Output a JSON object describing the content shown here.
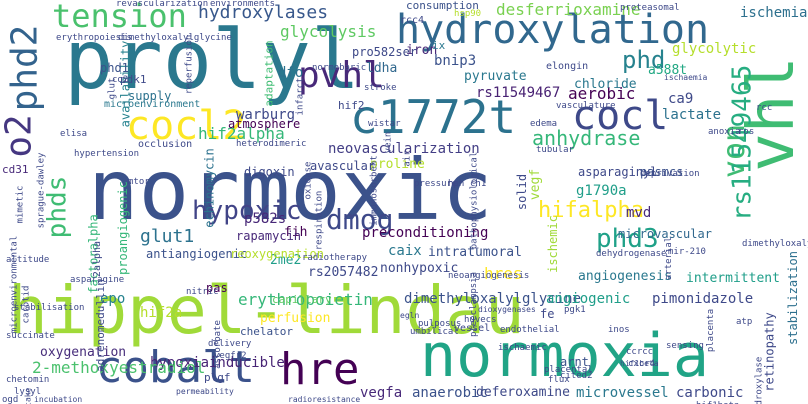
{
  "words": [
    {
      "text": "normoxic",
      "color": "#3b528b"
    },
    {
      "text": "hippel-lindau",
      "color": "#a0da39"
    },
    {
      "text": "prolyl",
      "color": "#2a788e"
    },
    {
      "text": "normoxia",
      "color": "#20a486"
    },
    {
      "text": "vhl",
      "color": "#3fbc73"
    },
    {
      "text": "hydroxylation",
      "color": "#31688e"
    },
    {
      "text": "c1772t",
      "color": "#2c728e"
    },
    {
      "text": "cobalt",
      "color": "#3b528b"
    },
    {
      "text": "hre",
      "color": "#440154"
    },
    {
      "text": "cocl2",
      "color": "#fde725"
    },
    {
      "text": "cocl",
      "color": "#3e4989"
    },
    {
      "text": "pvhl",
      "color": "#482979"
    },
    {
      "text": "phd2",
      "color": "#33638d"
    },
    {
      "text": "tension",
      "color": "#4ac16d"
    },
    {
      "text": "o2",
      "color": "#453781"
    },
    {
      "text": "von",
      "color": "#3fbc73"
    },
    {
      "text": "rs11549465",
      "color": "#26ad81"
    },
    {
      "text": "dmog",
      "color": "#3e4989"
    },
    {
      "text": "hifalpha",
      "color": "#fde725"
    },
    {
      "text": "hypoxic",
      "color": "#414487"
    },
    {
      "text": "phd3",
      "color": "#1fa188"
    },
    {
      "text": "phds",
      "color": "#3fbc73"
    },
    {
      "text": "phd",
      "color": "#26828e"
    },
    {
      "text": "hydroxylases",
      "color": "#38588c"
    },
    {
      "text": "glycolysis",
      "color": "#5ec962"
    },
    {
      "text": "desferrioxamine",
      "color": "#7ad151"
    },
    {
      "text": "ischemia",
      "color": "#2d708e"
    },
    {
      "text": "glycolytic",
      "color": "#b5de2b"
    },
    {
      "text": "hif2alpha",
      "color": "#35b779"
    },
    {
      "text": "anhydrase",
      "color": "#35b779"
    },
    {
      "text": "aerobic",
      "color": "#440154"
    },
    {
      "text": "rs11549467",
      "color": "#482173"
    },
    {
      "text": "bnip3",
      "color": "#3b528b"
    },
    {
      "text": "lactate",
      "color": "#2c728e"
    },
    {
      "text": "ca9",
      "color": "#3e4989"
    },
    {
      "text": "chloride",
      "color": "#2a788e"
    },
    {
      "text": "a588t",
      "color": "#22a884"
    },
    {
      "text": "neovascularization",
      "color": "#433e85"
    },
    {
      "text": "erythropoietin",
      "color": "#35b779"
    },
    {
      "text": "dimethyloxalylglycine",
      "color": "#3b528b"
    },
    {
      "text": "hypoxiainducible",
      "color": "#482475"
    },
    {
      "text": "2-methoxyestradiol",
      "color": "#4ac16d"
    },
    {
      "text": "oxygenation",
      "color": "#472d7b"
    },
    {
      "text": "angiogenic",
      "color": "#1f9e89"
    },
    {
      "text": "anaerobic",
      "color": "#3b528b"
    },
    {
      "text": "microvessel",
      "color": "#2a788e"
    },
    {
      "text": "deferoxamine",
      "color": "#3e4989"
    },
    {
      "text": "vegfa",
      "color": "#482979"
    },
    {
      "text": "carbonic",
      "color": "#3e4989"
    },
    {
      "text": "pimonidazole",
      "color": "#3e4989"
    },
    {
      "text": "preconditioning",
      "color": "#440154"
    },
    {
      "text": "glut1",
      "color": "#2c728e"
    },
    {
      "text": "p582s",
      "color": "#482878"
    },
    {
      "text": "g1790a",
      "color": "#1f9e89"
    },
    {
      "text": "hres",
      "color": "#fde725"
    },
    {
      "text": "caix",
      "color": "#2a788e"
    },
    {
      "text": "epo",
      "color": "#26828e"
    },
    {
      "text": "hif2a",
      "color": "#b5de2b"
    },
    {
      "text": "intratumoral",
      "color": "#3b528b"
    },
    {
      "text": "nonhypoxic",
      "color": "#3e4989"
    },
    {
      "text": "rs2057482",
      "color": "#3e4989"
    },
    {
      "text": "2me2",
      "color": "#1f9e89"
    },
    {
      "text": "fih",
      "color": "#440154"
    },
    {
      "text": "mvd",
      "color": "#482979"
    },
    {
      "text": "angiogenesis",
      "color": "#2a788e"
    },
    {
      "text": "intermittent",
      "color": "#1f9e89"
    },
    {
      "text": "asparaginyl",
      "color": "#3e4989"
    },
    {
      "text": "pasmcs",
      "color": "#3b528b"
    },
    {
      "text": "microvascular",
      "color": "#31688e"
    },
    {
      "text": "retinopathy",
      "color": "#3e4989"
    },
    {
      "text": "stabilization",
      "color": "#2d708e"
    },
    {
      "text": "warburg",
      "color": "#3e4989"
    },
    {
      "text": "supply",
      "color": "#2c728e"
    },
    {
      "text": "availability",
      "color": "#26828e"
    },
    {
      "text": "atmosphere",
      "color": "#440154"
    },
    {
      "text": "dfo",
      "color": "#2c728e"
    },
    {
      "text": "ldha",
      "color": "#31688e"
    },
    {
      "text": "iron",
      "color": "#482979"
    },
    {
      "text": "pyruvate",
      "color": "#2a788e"
    },
    {
      "text": "proline",
      "color": "#b5de2b"
    },
    {
      "text": "vegf",
      "color": "#a0da39"
    },
    {
      "text": "solid",
      "color": "#3e4989"
    },
    {
      "text": "ischemic",
      "color": "#a0da39"
    },
    {
      "text": "proangiogenic",
      "color": "#35b779"
    },
    {
      "text": "echinomycin",
      "color": "#2c728e"
    },
    {
      "text": "avascular",
      "color": "#3e4989"
    },
    {
      "text": "digoxin",
      "color": "#3e4989"
    },
    {
      "text": "rapamycin",
      "color": "#482979"
    },
    {
      "text": "antiangiogenic",
      "color": "#3b528b"
    },
    {
      "text": "reoxygenation",
      "color": "#b5de2b"
    },
    {
      "text": "perfusion",
      "color": "#fde725"
    },
    {
      "text": "chelator",
      "color": "#3b528b"
    },
    {
      "text": "plgf",
      "color": "#3e4989"
    },
    {
      "text": "pas",
      "color": "#440154"
    },
    {
      "text": "factoralpha",
      "color": "#35b779"
    },
    {
      "text": "capillary",
      "color": "#5ec962"
    },
    {
      "text": "fe",
      "color": "#3e4989"
    },
    {
      "text": "arnt",
      "color": "#3b528b"
    },
    {
      "text": "adaptation",
      "color": "#3fbc73"
    },
    {
      "text": "hif2",
      "color": "#3e4989"
    },
    {
      "text": "phd1",
      "color": "#3b528b"
    },
    {
      "text": "pdk1",
      "color": "#3e4989"
    },
    {
      "text": "hif1beta",
      "color": "#3e4989"
    },
    {
      "text": "pro582ser",
      "color": "#3e4989"
    },
    {
      "text": "consumption",
      "color": "#3b528b"
    },
    {
      "text": "elongin",
      "color": "#3e4989"
    },
    {
      "text": "ix",
      "color": "#2a788e"
    },
    {
      "text": "rcc4",
      "color": "#3e4989"
    },
    {
      "text": "hsp90",
      "color": "#b5de2b"
    },
    {
      "text": "revascularization",
      "color": "#3e4989"
    },
    {
      "text": "environments",
      "color": "#3e4989"
    },
    {
      "text": "proteasomal",
      "color": "#3e4989"
    },
    {
      "text": "erythropoiesis",
      "color": "#3e4989"
    },
    {
      "text": "dimethyloxalylglycine",
      "color": "#3e4989"
    },
    {
      "text": "normobaric",
      "color": "#3e4989"
    },
    {
      "text": "infarct",
      "color": "#3e4989"
    },
    {
      "text": "stroke",
      "color": "#3e4989"
    },
    {
      "text": "microenvironment",
      "color": "#2a788e"
    },
    {
      "text": "glut",
      "color": "#3e4989"
    },
    {
      "text": "co2",
      "color": "#3e4989"
    },
    {
      "text": "reperfusion",
      "color": "#3e4989"
    },
    {
      "text": "cd31",
      "color": "#482979"
    },
    {
      "text": "mimetic",
      "color": "#3e4989"
    },
    {
      "text": "sprague-dawley",
      "color": "#3e4989"
    },
    {
      "text": "2alpha",
      "color": "#3e4989"
    },
    {
      "text": "mtor",
      "color": "#3e4989"
    },
    {
      "text": "occlusion",
      "color": "#3e4989"
    },
    {
      "text": "hypertension",
      "color": "#3e4989"
    },
    {
      "text": "elisa",
      "color": "#3e4989"
    },
    {
      "text": "heterodimeric",
      "color": "#3e4989"
    },
    {
      "text": "stabilisation",
      "color": "#3e4989"
    },
    {
      "text": "microenvironmental",
      "color": "#3e4989"
    },
    {
      "text": "altitude",
      "color": "#3e4989"
    },
    {
      "text": "carotid",
      "color": "#3e4989"
    },
    {
      "text": "asparagine",
      "color": "#3e4989"
    },
    {
      "text": "succinate",
      "color": "#3e4989"
    },
    {
      "text": "adrenomedullin",
      "color": "#3e4989"
    },
    {
      "text": "ascorbate",
      "color": "#3e4989"
    },
    {
      "text": "chetomin",
      "color": "#3e4989"
    },
    {
      "text": "lysyl",
      "color": "#3e4989"
    },
    {
      "text": "ogd",
      "color": "#3e4989"
    },
    {
      "text": "incubation",
      "color": "#3e4989"
    },
    {
      "text": "radioresistance",
      "color": "#3e4989"
    },
    {
      "text": "vegfr2",
      "color": "#3e4989"
    },
    {
      "text": "delivery",
      "color": "#3e4989"
    },
    {
      "text": "pulposus",
      "color": "#3e4989"
    },
    {
      "text": "umbilical",
      "color": "#3e4989"
    },
    {
      "text": "vessel",
      "color": "#3e4989"
    },
    {
      "text": "endothelial",
      "color": "#3e4989"
    },
    {
      "text": "flux",
      "color": "#3e4989"
    },
    {
      "text": "cited2",
      "color": "#3e4989"
    },
    {
      "text": "placental",
      "color": "#3e4989"
    },
    {
      "text": "ccrcc",
      "color": "#3e4989"
    },
    {
      "text": "cxcr4",
      "color": "#3e4989"
    },
    {
      "text": "sensing",
      "color": "#3e4989"
    },
    {
      "text": "placenta",
      "color": "#3e4989"
    },
    {
      "text": "atp",
      "color": "#3e4989"
    },
    {
      "text": "pgk1",
      "color": "#3e4989"
    },
    {
      "text": "inos",
      "color": "#3e4989"
    },
    {
      "text": "mir-210",
      "color": "#3e4989"
    },
    {
      "text": "dimethyloxalyl",
      "color": "#3e4989"
    },
    {
      "text": "arterial",
      "color": "#3e4989"
    },
    {
      "text": "deprivation",
      "color": "#3e4989"
    },
    {
      "text": "dehydrogenase",
      "color": "#3e4989"
    },
    {
      "text": "tubular",
      "color": "#3e4989"
    },
    {
      "text": "pressure",
      "color": "#3e4989"
    },
    {
      "text": "hph",
      "color": "#3e4989"
    },
    {
      "text": "immunosorbent",
      "color": "#3e4989"
    },
    {
      "text": "oxidase",
      "color": "#3e4989"
    },
    {
      "text": "radiotherapy",
      "color": "#3e4989"
    },
    {
      "text": "pathophysiological",
      "color": "#3e4989"
    },
    {
      "text": "respiration",
      "color": "#3e4989"
    },
    {
      "text": "neoangiogenesis",
      "color": "#3e4989"
    },
    {
      "text": "wistar",
      "color": "#3e4989"
    },
    {
      "text": "edema",
      "color": "#3e4989"
    },
    {
      "text": "vasculature",
      "color": "#3e4989"
    },
    {
      "text": "anoxia",
      "color": "#3e4989"
    },
    {
      "text": "ros",
      "color": "#3e4989"
    },
    {
      "text": "rcc",
      "color": "#3e4989"
    },
    {
      "text": "ischaemia",
      "color": "#3e4989"
    },
    {
      "text": "vein",
      "color": "#3e4989"
    },
    {
      "text": "air",
      "color": "#3e4989"
    },
    {
      "text": "ch1",
      "color": "#3e4989"
    },
    {
      "text": "nitric",
      "color": "#3e4989"
    },
    {
      "text": "preeclampsia",
      "color": "#3e4989"
    },
    {
      "text": "huvecs",
      "color": "#3e4989"
    },
    {
      "text": "egln",
      "color": "#3e4989"
    },
    {
      "text": "ischaemic",
      "color": "#3e4989"
    },
    {
      "text": "uptake",
      "color": "#3e4989"
    },
    {
      "text": "permeability",
      "color": "#3e4989"
    },
    {
      "text": "dioxygenases",
      "color": "#3e4989"
    },
    {
      "text": "hif1beta",
      "color": "#3e4989"
    },
    {
      "text": "hydroxylase",
      "color": "#3e4989"
    }
  ]
}
